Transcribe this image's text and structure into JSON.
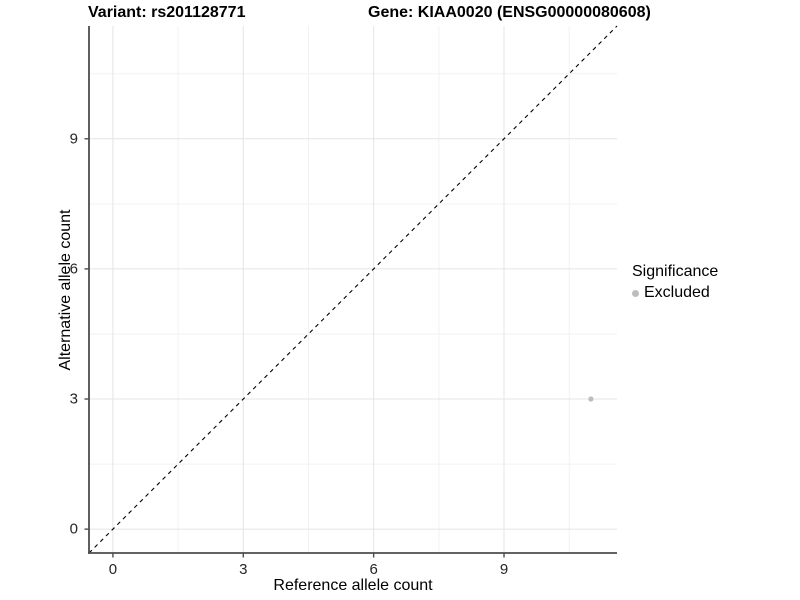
{
  "figure": {
    "title_left": "Variant: rs201128771",
    "title_right": "Gene: KIAA0020 (ENSG00000080608)"
  },
  "chart_data": {
    "type": "scatter",
    "xlabel": "Reference allele count",
    "ylabel": "Alternative allele count",
    "xlim": [
      -0.55,
      11.6
    ],
    "ylim": [
      -0.55,
      11.6
    ],
    "x_ticks": [
      0,
      3,
      6,
      9
    ],
    "y_ticks": [
      0,
      3,
      6,
      9
    ],
    "minor_gridlines": [
      1.5,
      4.5,
      7.5,
      10.5
    ],
    "grid": "major and minor gridlines on white panel",
    "series": [
      {
        "name": "Excluded",
        "color": "#bdbdbd",
        "points": [
          [
            11,
            3
          ]
        ]
      }
    ],
    "reference_line": {
      "kind": "identity",
      "equation": "y = x",
      "style": "dashed",
      "color": "#000000"
    },
    "legend": {
      "title": "Significance",
      "position": "right",
      "items": [
        {
          "label": "Excluded",
          "color": "#bdbdbd",
          "marker": "circle"
        }
      ]
    },
    "colors": {
      "grid_major": "#e4e4e4",
      "grid_minor": "#f2f2f2",
      "axis_line": "#4d4d4d",
      "tick_label": "#262626",
      "point": "#bdbdbd"
    }
  }
}
